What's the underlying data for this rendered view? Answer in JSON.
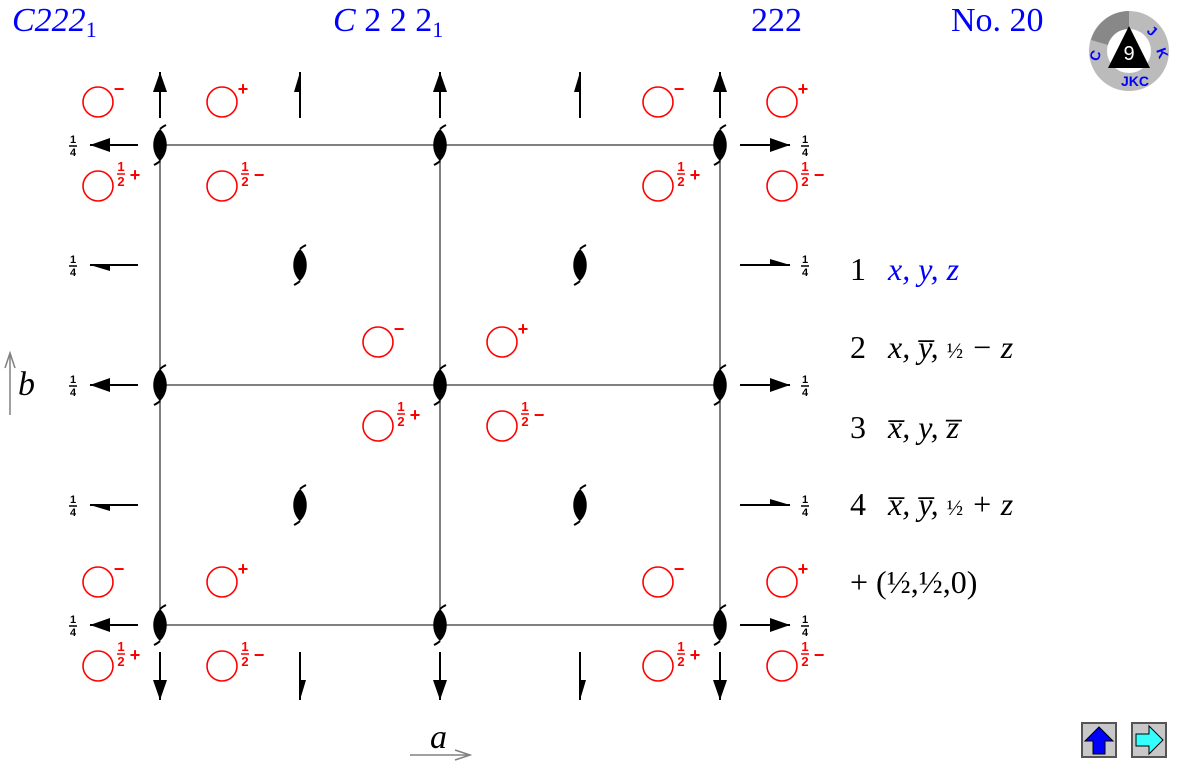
{
  "header": {
    "short_symbol": "C222",
    "short_symbol_sub": "1",
    "full_symbol": "C 2 2 2",
    "full_symbol_sub": "1",
    "point_group": "222",
    "number": "No. 20"
  },
  "logo": {
    "text": "JKC"
  },
  "axes": {
    "a": "a",
    "b": "b"
  },
  "height_label": {
    "num": "1",
    "den": "4"
  },
  "markers": {
    "plus": "+",
    "minus": "−",
    "half_num": "1",
    "half_den": "2"
  },
  "positions": [
    {
      "index": "1",
      "parts": [
        "x, y, z"
      ],
      "highlight": true
    },
    {
      "index": "2",
      "text": "x, y̅, ",
      "frac": "½",
      "tail": " − z"
    },
    {
      "index": "3",
      "text": "x̅, y, z̅"
    },
    {
      "index": "4",
      "text": "x̅, y̅, ",
      "frac": "½",
      "tail": " + z"
    }
  ],
  "centering": "+ (½,½,0)",
  "colors": {
    "title": "#0000ff",
    "marker": "#ff0000",
    "grid": "#808080",
    "up_button": "#0000ff",
    "next_button": "#33ffff"
  },
  "nav": {
    "up_icon": "up-arrow",
    "next_icon": "right-arrow"
  }
}
